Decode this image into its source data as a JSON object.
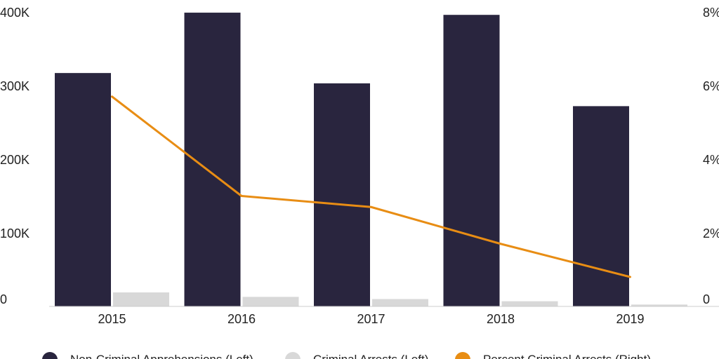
{
  "chart_data": {
    "type": "bar",
    "title": "",
    "xlabel": "",
    "ylabel": "",
    "categories": [
      "2015",
      "2016",
      "2017",
      "2018",
      "2019"
    ],
    "series": [
      {
        "name": "Non-Criminal Apprehensions (Left)",
        "type": "bar",
        "axis": "left",
        "color": "#29253e",
        "values": [
          317000,
          399000,
          303000,
          396000,
          272000
        ]
      },
      {
        "name": "Criminal Arrests (Left)",
        "type": "bar",
        "axis": "left",
        "color": "#d8d8d8",
        "values": [
          19000,
          13000,
          10000,
          7000,
          2500
        ]
      },
      {
        "name": "Percent Criminal Arrests (Right)",
        "type": "line",
        "axis": "right",
        "color": "#e88d14",
        "values": [
          5.7,
          3.0,
          2.7,
          1.7,
          0.8
        ]
      }
    ],
    "left_axis": {
      "ylim": [
        0,
        400000
      ],
      "ticks": [
        0,
        100000,
        200000,
        300000,
        400000
      ],
      "tick_labels": [
        "0",
        "100K",
        "200K",
        "300K",
        "400K"
      ]
    },
    "right_axis": {
      "ylim": [
        0,
        8
      ],
      "ticks": [
        0,
        2,
        4,
        6,
        8
      ],
      "tick_labels": [
        "0",
        "2%",
        "4%",
        "6%",
        "8%"
      ]
    },
    "grid": false,
    "legend_position": "bottom"
  }
}
